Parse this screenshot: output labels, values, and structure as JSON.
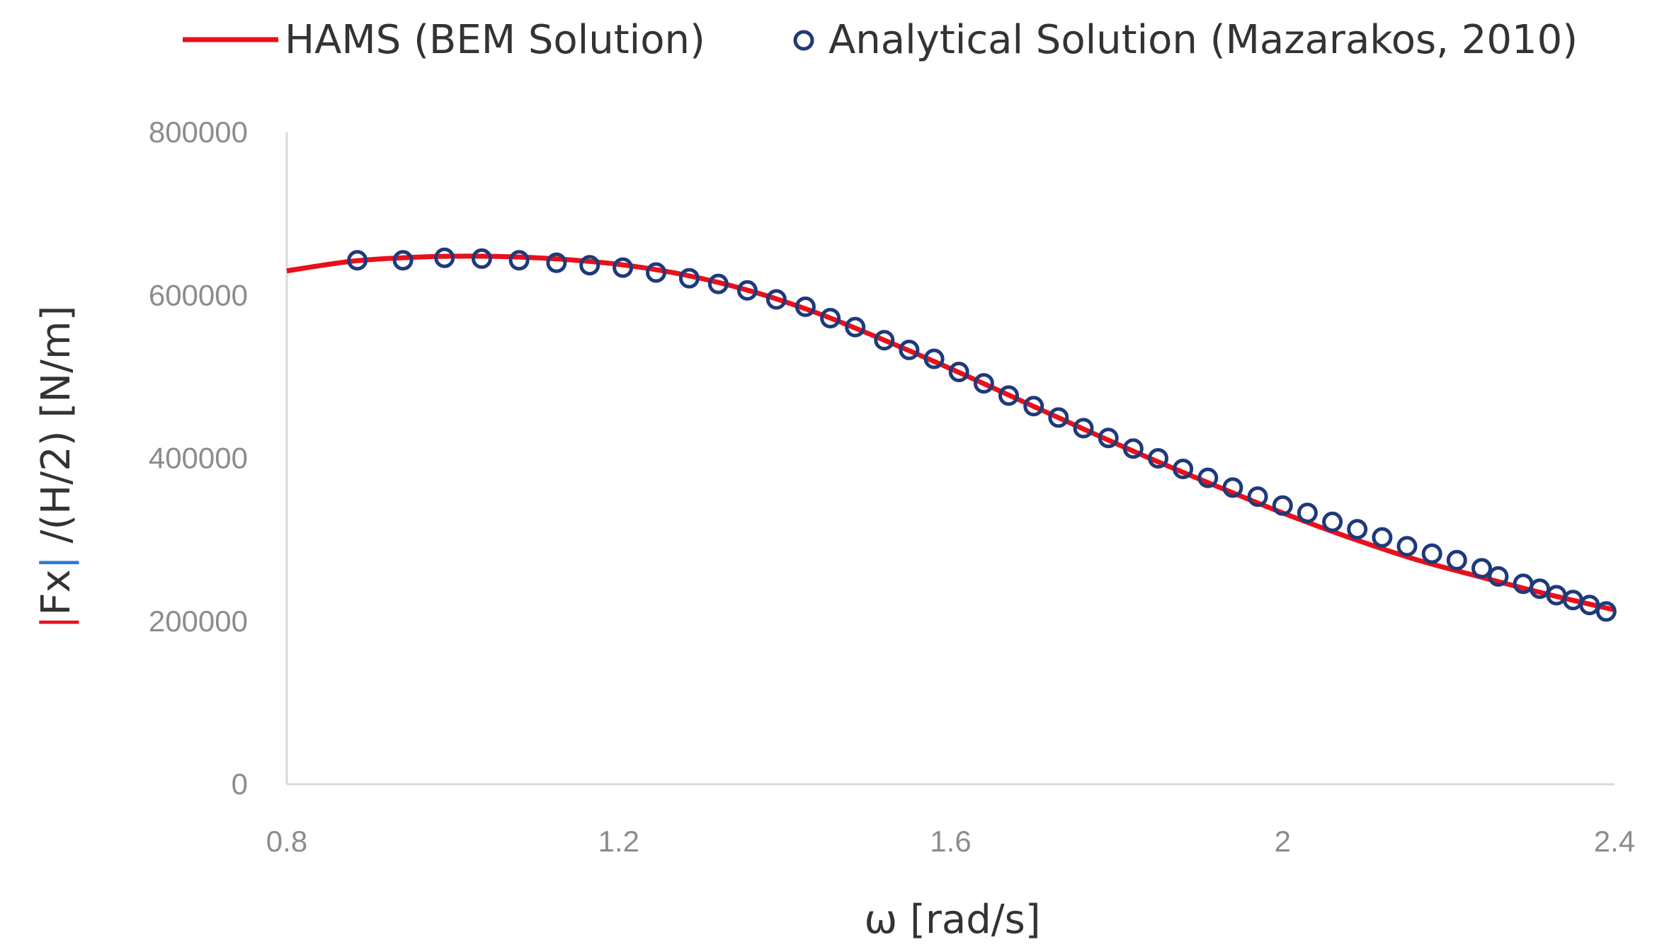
{
  "chart_data": {
    "type": "line",
    "xlabel": "ω [rad/s]",
    "ylabel": {
      "bar_left": "|",
      "fx": "Fx",
      "bar_right": "|",
      "rest": " /(H/2) [N/m]"
    },
    "xlim": [
      0.8,
      2.4
    ],
    "ylim": [
      0,
      800000
    ],
    "x_ticks": [
      0.8,
      1.2,
      1.6,
      2,
      2.4
    ],
    "x_tick_labels": [
      "0.8",
      "1.2",
      "1.6",
      "2",
      "2.4"
    ],
    "y_ticks": [
      0,
      200000,
      400000,
      600000,
      800000
    ],
    "y_tick_labels": [
      "0",
      "200000",
      "400000",
      "600000",
      "800000"
    ],
    "grid": false,
    "legend_position": "top",
    "series": [
      {
        "name": "HAMS (BEM Solution)",
        "style": "line",
        "color": "#e8101c",
        "x": [
          0.8,
          0.88,
          0.96,
          1.04,
          1.12,
          1.2,
          1.28,
          1.36,
          1.44,
          1.52,
          1.6,
          1.68,
          1.76,
          1.84,
          1.92,
          2.0,
          2.08,
          2.16,
          2.24,
          2.32,
          2.4
        ],
        "y": [
          630000,
          642000,
          647000,
          648000,
          645000,
          638000,
          625000,
          605000,
          578000,
          545000,
          510000,
          473000,
          436000,
          400000,
          366000,
          333000,
          303000,
          276000,
          254000,
          233000,
          214000
        ]
      },
      {
        "name": "Analytical Solution (Mazarakos, 2010)",
        "style": "markers",
        "marker": "open-circle",
        "color": "#1f3a7a",
        "x": [
          0.885,
          0.94,
          0.99,
          1.035,
          1.08,
          1.125,
          1.165,
          1.205,
          1.245,
          1.285,
          1.32,
          1.355,
          1.39,
          1.425,
          1.455,
          1.485,
          1.52,
          1.55,
          1.58,
          1.61,
          1.64,
          1.67,
          1.7,
          1.73,
          1.76,
          1.79,
          1.82,
          1.85,
          1.88,
          1.91,
          1.94,
          1.97,
          2.0,
          2.03,
          2.06,
          2.09,
          2.12,
          2.15,
          2.18,
          2.21,
          2.24,
          2.26,
          2.29,
          2.31,
          2.33,
          2.35,
          2.37,
          2.39
        ],
        "y": [
          643000,
          643000,
          646000,
          645000,
          643000,
          640000,
          637000,
          634000,
          628000,
          621000,
          614000,
          606000,
          595000,
          586000,
          572000,
          561000,
          545000,
          533000,
          522000,
          506000,
          492000,
          477000,
          464000,
          450000,
          437000,
          425000,
          412000,
          400000,
          387000,
          376000,
          364000,
          353000,
          342000,
          333000,
          322000,
          313000,
          303000,
          292000,
          283000,
          275000,
          265000,
          255000,
          246000,
          240000,
          232000,
          226000,
          220000,
          212000
        ]
      }
    ]
  }
}
